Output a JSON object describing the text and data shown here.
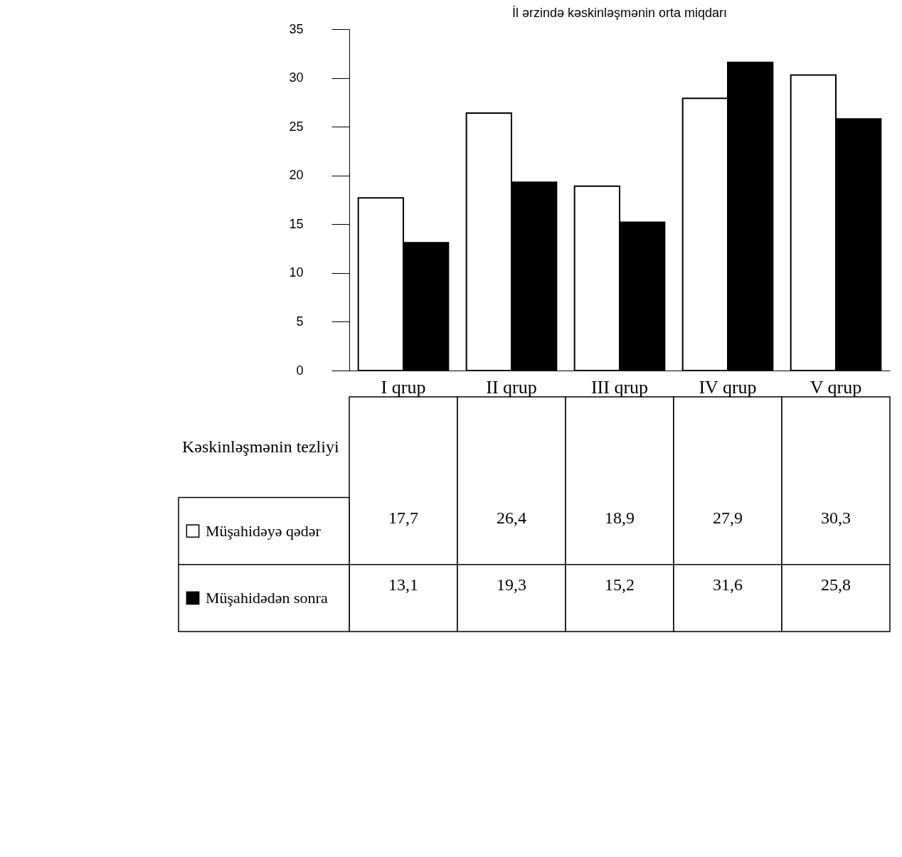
{
  "chart_data": {
    "type": "bar",
    "title": "İl ərzində kəskinləşmənin orta miqdarı",
    "ylabel": "Kəskinləşmənin tezliyi",
    "categories": [
      "I qrup",
      "II qrup",
      "III qrup",
      "IV qrup",
      "V qrup"
    ],
    "series": [
      {
        "name": "Müşahidəyə qədər",
        "color": "#ffffff",
        "values": [
          17.7,
          26.4,
          18.9,
          27.9,
          30.3
        ],
        "value_labels": [
          "17,7",
          "26,4",
          "18,9",
          "27,9",
          "30,3"
        ]
      },
      {
        "name": "Müşahidədən sonra",
        "color": "#000000",
        "values": [
          13.1,
          19.3,
          15.2,
          31.6,
          25.8
        ],
        "value_labels": [
          "13,1",
          "19,3",
          "15,2",
          "31,6",
          "25,8"
        ]
      }
    ],
    "ylim": [
      0,
      35
    ],
    "yticks": [
      0,
      5,
      10,
      15,
      20,
      25,
      30,
      35
    ],
    "grid": false,
    "legend": "bottom left"
  }
}
